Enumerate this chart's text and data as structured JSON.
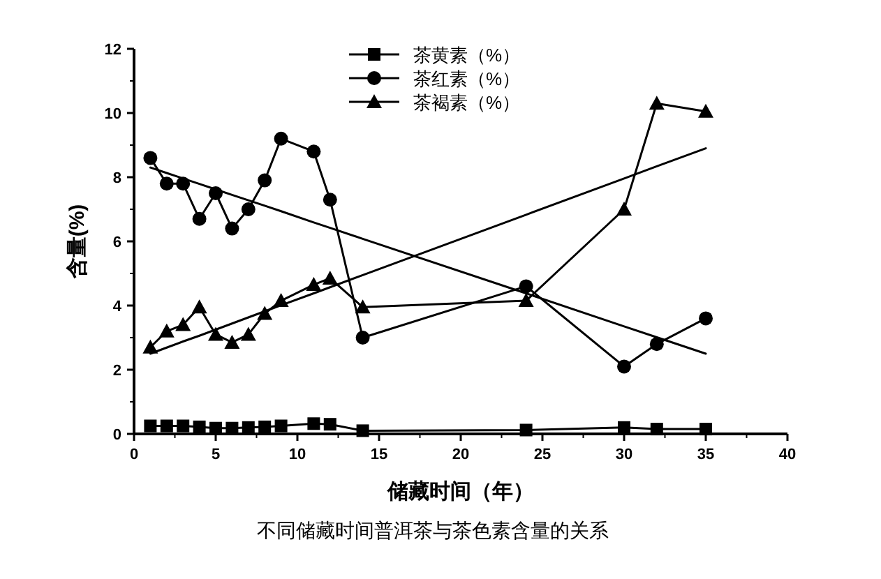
{
  "chart_data": {
    "type": "line",
    "xlabel": "储藏时间（年）",
    "ylabel": "含量(%)",
    "annotations": [
      "不同储藏时间普洱茶与茶色素含量的关系"
    ],
    "xlim": [
      0,
      40
    ],
    "xticks": [
      0,
      5,
      10,
      15,
      20,
      25,
      30,
      35,
      40
    ],
    "ylim": [
      0,
      12
    ],
    "yticks": [
      0,
      2,
      4,
      6,
      8,
      10,
      12
    ],
    "grid": false,
    "legend": "top right",
    "x": [
      1,
      2,
      3,
      4,
      5,
      6,
      7,
      8,
      9,
      11,
      12,
      14,
      24,
      30,
      32,
      35
    ],
    "series": [
      {
        "name": "茶黄素（%）",
        "color": "#000000",
        "marker": "square",
        "values": [
          0.25,
          0.25,
          0.25,
          0.22,
          0.18,
          0.18,
          0.2,
          0.22,
          0.25,
          0.32,
          0.3,
          0.1,
          0.12,
          0.2,
          0.15,
          0.15
        ]
      },
      {
        "name": "茶红素（%）",
        "color": "#000000",
        "marker": "circle",
        "values": [
          8.6,
          7.8,
          7.8,
          6.7,
          7.5,
          6.4,
          7.0,
          7.9,
          9.2,
          8.8,
          7.3,
          3.0,
          4.6,
          2.1,
          2.8,
          3.6
        ]
      },
      {
        "name": "茶褐素（%）",
        "color": "#000000",
        "marker": "triangle",
        "values": [
          2.7,
          3.2,
          3.4,
          3.95,
          3.1,
          2.85,
          3.1,
          3.75,
          4.15,
          4.65,
          4.85,
          3.95,
          4.15,
          7.0,
          10.3,
          10.05
        ]
      },
      {
        "color": "#000000",
        "marker": "none",
        "values": [
          8.3,
          8.13,
          7.96,
          7.79,
          7.62,
          7.45,
          7.28,
          7.11,
          6.94,
          6.59,
          6.42,
          6.08,
          4.38,
          3.35,
          3.01,
          2.5
        ]
      },
      {
        "color": "#000000",
        "marker": "none",
        "values": [
          2.5,
          2.69,
          2.88,
          3.06,
          3.25,
          3.44,
          3.63,
          3.82,
          4.01,
          4.38,
          4.57,
          4.95,
          6.83,
          7.96,
          8.34,
          8.9
        ]
      }
    ]
  }
}
